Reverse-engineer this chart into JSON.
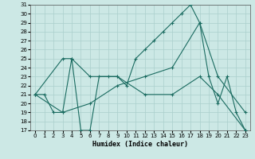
{
  "xlabel": "Humidex (Indice chaleur)",
  "background_color": "#cce8e5",
  "grid_color": "#aacfcc",
  "line_color": "#1a6b60",
  "xlim": [
    -0.5,
    23.5
  ],
  "ylim": [
    17,
    31
  ],
  "xticks": [
    0,
    1,
    2,
    3,
    4,
    5,
    6,
    7,
    8,
    9,
    10,
    11,
    12,
    13,
    14,
    15,
    16,
    17,
    18,
    19,
    20,
    21,
    22,
    23
  ],
  "yticks": [
    17,
    18,
    19,
    20,
    21,
    22,
    23,
    24,
    25,
    26,
    27,
    28,
    29,
    30,
    31
  ],
  "lines": [
    {
      "x": [
        0,
        1,
        2,
        3,
        4,
        5,
        6,
        7,
        8,
        9,
        10,
        11,
        12,
        13,
        14,
        15,
        16,
        17,
        18,
        19,
        20,
        21,
        22,
        23
      ],
      "y": [
        21,
        21,
        19,
        19,
        25,
        17,
        17,
        23,
        23,
        23,
        22,
        25,
        26,
        27,
        28,
        29,
        30,
        31,
        29,
        23,
        20,
        23,
        19,
        17
      ]
    },
    {
      "x": [
        0,
        3,
        6,
        9,
        12,
        15,
        18,
        20,
        23
      ],
      "y": [
        21,
        19,
        20,
        22,
        23,
        24,
        29,
        23,
        19
      ]
    },
    {
      "x": [
        0,
        3,
        4,
        6,
        9,
        12,
        15,
        18,
        20,
        23
      ],
      "y": [
        21,
        25,
        25,
        23,
        23,
        21,
        21,
        23,
        21,
        17
      ]
    }
  ]
}
